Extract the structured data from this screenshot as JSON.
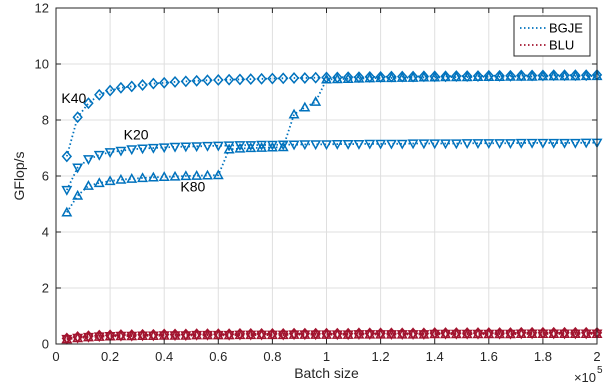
{
  "chart_data": {
    "type": "line",
    "title": "",
    "xlabel": "Batch size",
    "ylabel": "GFlop/s",
    "x_exponent_label": "×10",
    "x_exponent_power": "5",
    "xlim": [
      0,
      200000
    ],
    "ylim": [
      0,
      12
    ],
    "x_ticks": [
      0,
      20000,
      40000,
      60000,
      80000,
      100000,
      120000,
      140000,
      160000,
      180000,
      200000
    ],
    "x_tick_labels": [
      "0",
      "0.2",
      "0.4",
      "0.6",
      "0.8",
      "1",
      "1.2",
      "1.4",
      "1.6",
      "1.8",
      "2"
    ],
    "y_ticks": [
      0,
      2,
      4,
      6,
      8,
      10,
      12
    ],
    "y_tick_labels": [
      "0",
      "2",
      "4",
      "6",
      "8",
      "10",
      "12"
    ],
    "grid": true,
    "legend_position": "top-right",
    "legend": [
      {
        "label": "BGJE",
        "color": "#0072bd",
        "style": "dotted"
      },
      {
        "label": "BLU",
        "color": "#a2142f",
        "style": "dotted"
      }
    ],
    "annotations": [
      {
        "text": "K40",
        "x": 2000,
        "y": 8.6
      },
      {
        "text": "K20",
        "x": 25000,
        "y": 7.3
      },
      {
        "text": "K80",
        "x": 46000,
        "y": 5.45
      }
    ],
    "series": [
      {
        "name": "BGJE",
        "gpu": "K40",
        "marker": "diamond",
        "color": "#0072bd",
        "x": [
          4000,
          8000,
          12000,
          16000,
          20000,
          24000,
          28000,
          32000,
          36000,
          40000,
          44000,
          48000,
          52000,
          56000,
          60000,
          64000,
          68000,
          72000,
          76000,
          80000,
          84000,
          88000,
          92000,
          96000,
          100000,
          104000,
          108000,
          112000,
          116000,
          120000,
          124000,
          128000,
          132000,
          136000,
          140000,
          144000,
          148000,
          152000,
          156000,
          160000,
          164000,
          168000,
          172000,
          176000,
          180000,
          184000,
          188000,
          192000,
          196000,
          200000
        ],
        "y": [
          6.7,
          8.1,
          8.6,
          8.9,
          9.05,
          9.15,
          9.2,
          9.25,
          9.3,
          9.33,
          9.36,
          9.38,
          9.4,
          9.42,
          9.43,
          9.44,
          9.45,
          9.46,
          9.47,
          9.48,
          9.49,
          9.5,
          9.5,
          9.51,
          9.52,
          9.52,
          9.53,
          9.53,
          9.54,
          9.54,
          9.55,
          9.55,
          9.55,
          9.56,
          9.56,
          9.56,
          9.57,
          9.57,
          9.57,
          9.58,
          9.58,
          9.58,
          9.59,
          9.59,
          9.59,
          9.6,
          9.6,
          9.6,
          9.6,
          9.61
        ]
      },
      {
        "name": "BGJE",
        "gpu": "K20",
        "marker": "triangle-down",
        "color": "#0072bd",
        "x": [
          4000,
          8000,
          12000,
          16000,
          20000,
          24000,
          28000,
          32000,
          36000,
          40000,
          44000,
          48000,
          52000,
          56000,
          60000,
          64000,
          68000,
          72000,
          76000,
          80000,
          84000,
          88000,
          92000,
          96000,
          100000,
          104000,
          108000,
          112000,
          116000,
          120000,
          124000,
          128000,
          132000,
          136000,
          140000,
          144000,
          148000,
          152000,
          156000,
          160000,
          164000,
          168000,
          172000,
          176000,
          180000,
          184000,
          188000,
          192000,
          196000,
          200000
        ],
        "y": [
          5.5,
          6.3,
          6.6,
          6.75,
          6.85,
          6.9,
          6.95,
          6.98,
          7.0,
          7.02,
          7.04,
          7.05,
          7.06,
          7.07,
          7.08,
          7.09,
          7.1,
          7.1,
          7.11,
          7.11,
          7.12,
          7.12,
          7.13,
          7.13,
          7.13,
          7.14,
          7.14,
          7.14,
          7.15,
          7.15,
          7.15,
          7.15,
          7.16,
          7.16,
          7.16,
          7.16,
          7.16,
          7.17,
          7.17,
          7.17,
          7.17,
          7.17,
          7.18,
          7.18,
          7.18,
          7.18,
          7.18,
          7.18,
          7.19,
          7.19
        ]
      },
      {
        "name": "BGJE",
        "gpu": "K80",
        "marker": "triangle-up",
        "color": "#0072bd",
        "x": [
          4000,
          8000,
          12000,
          16000,
          20000,
          24000,
          28000,
          32000,
          36000,
          40000,
          44000,
          48000,
          52000,
          56000,
          60000,
          64000,
          68000,
          72000,
          76000,
          80000,
          84000,
          88000,
          92000,
          96000,
          100000,
          104000,
          108000,
          112000,
          116000,
          120000,
          124000,
          128000,
          132000,
          136000,
          140000,
          144000,
          148000,
          152000,
          156000,
          160000,
          164000,
          168000,
          172000,
          176000,
          180000,
          184000,
          188000,
          192000,
          196000,
          200000
        ],
        "y": [
          4.7,
          5.3,
          5.65,
          5.75,
          5.82,
          5.87,
          5.9,
          5.93,
          5.95,
          5.97,
          5.98,
          6.0,
          6.01,
          6.02,
          6.03,
          6.95,
          6.98,
          7.0,
          7.01,
          7.02,
          7.03,
          8.2,
          8.45,
          8.65,
          9.45,
          9.46,
          9.47,
          9.48,
          9.49,
          9.5,
          9.5,
          9.51,
          9.51,
          9.52,
          9.52,
          9.53,
          9.53,
          9.53,
          9.54,
          9.54,
          9.54,
          9.55,
          9.55,
          9.55,
          9.56,
          9.56,
          9.56,
          9.56,
          9.57,
          9.57
        ]
      },
      {
        "name": "BLU",
        "gpu": "K40",
        "marker": "diamond",
        "color": "#a2142f",
        "x": [
          4000,
          8000,
          12000,
          16000,
          20000,
          24000,
          28000,
          32000,
          36000,
          40000,
          44000,
          48000,
          52000,
          56000,
          60000,
          64000,
          68000,
          72000,
          76000,
          80000,
          84000,
          88000,
          92000,
          96000,
          100000,
          104000,
          108000,
          112000,
          116000,
          120000,
          124000,
          128000,
          132000,
          136000,
          140000,
          144000,
          148000,
          152000,
          156000,
          160000,
          164000,
          168000,
          172000,
          176000,
          180000,
          184000,
          188000,
          192000,
          196000,
          200000
        ],
        "y": [
          0.2,
          0.25,
          0.28,
          0.3,
          0.31,
          0.32,
          0.32,
          0.33,
          0.33,
          0.34,
          0.34,
          0.34,
          0.35,
          0.35,
          0.35,
          0.35,
          0.36,
          0.36,
          0.36,
          0.36,
          0.36,
          0.37,
          0.37,
          0.37,
          0.37,
          0.37,
          0.37,
          0.38,
          0.38,
          0.38,
          0.38,
          0.38,
          0.38,
          0.38,
          0.39,
          0.39,
          0.39,
          0.39,
          0.39,
          0.39,
          0.39,
          0.39,
          0.4,
          0.4,
          0.4,
          0.4,
          0.4,
          0.4,
          0.4,
          0.4
        ]
      },
      {
        "name": "BLU",
        "gpu": "K20",
        "marker": "triangle-down",
        "color": "#a2142f",
        "x": [
          4000,
          8000,
          12000,
          16000,
          20000,
          24000,
          28000,
          32000,
          36000,
          40000,
          44000,
          48000,
          52000,
          56000,
          60000,
          64000,
          68000,
          72000,
          76000,
          80000,
          84000,
          88000,
          92000,
          96000,
          100000,
          104000,
          108000,
          112000,
          116000,
          120000,
          124000,
          128000,
          132000,
          136000,
          140000,
          144000,
          148000,
          152000,
          156000,
          160000,
          164000,
          168000,
          172000,
          176000,
          180000,
          184000,
          188000,
          192000,
          196000,
          200000
        ],
        "y": [
          0.18,
          0.22,
          0.25,
          0.27,
          0.28,
          0.29,
          0.29,
          0.3,
          0.3,
          0.31,
          0.31,
          0.31,
          0.32,
          0.32,
          0.32,
          0.32,
          0.33,
          0.33,
          0.33,
          0.33,
          0.33,
          0.34,
          0.34,
          0.34,
          0.34,
          0.34,
          0.34,
          0.35,
          0.35,
          0.35,
          0.35,
          0.35,
          0.35,
          0.35,
          0.36,
          0.36,
          0.36,
          0.36,
          0.36,
          0.36,
          0.36,
          0.36,
          0.37,
          0.37,
          0.37,
          0.37,
          0.37,
          0.37,
          0.37,
          0.37
        ]
      },
      {
        "name": "BLU",
        "gpu": "K80",
        "marker": "triangle-up",
        "color": "#a2142f",
        "x": [
          4000,
          8000,
          12000,
          16000,
          20000,
          24000,
          28000,
          32000,
          36000,
          40000,
          44000,
          48000,
          52000,
          56000,
          60000,
          64000,
          68000,
          72000,
          76000,
          80000,
          84000,
          88000,
          92000,
          96000,
          100000,
          104000,
          108000,
          112000,
          116000,
          120000,
          124000,
          128000,
          132000,
          136000,
          140000,
          144000,
          148000,
          152000,
          156000,
          160000,
          164000,
          168000,
          172000,
          176000,
          180000,
          184000,
          188000,
          192000,
          196000,
          200000
        ],
        "y": [
          0.17,
          0.21,
          0.24,
          0.26,
          0.27,
          0.28,
          0.28,
          0.29,
          0.29,
          0.3,
          0.3,
          0.3,
          0.31,
          0.31,
          0.31,
          0.31,
          0.32,
          0.32,
          0.32,
          0.32,
          0.32,
          0.33,
          0.33,
          0.33,
          0.33,
          0.33,
          0.33,
          0.34,
          0.34,
          0.34,
          0.34,
          0.34,
          0.34,
          0.34,
          0.35,
          0.35,
          0.35,
          0.35,
          0.35,
          0.35,
          0.35,
          0.35,
          0.36,
          0.36,
          0.36,
          0.36,
          0.36,
          0.36,
          0.36,
          0.36
        ]
      }
    ]
  }
}
